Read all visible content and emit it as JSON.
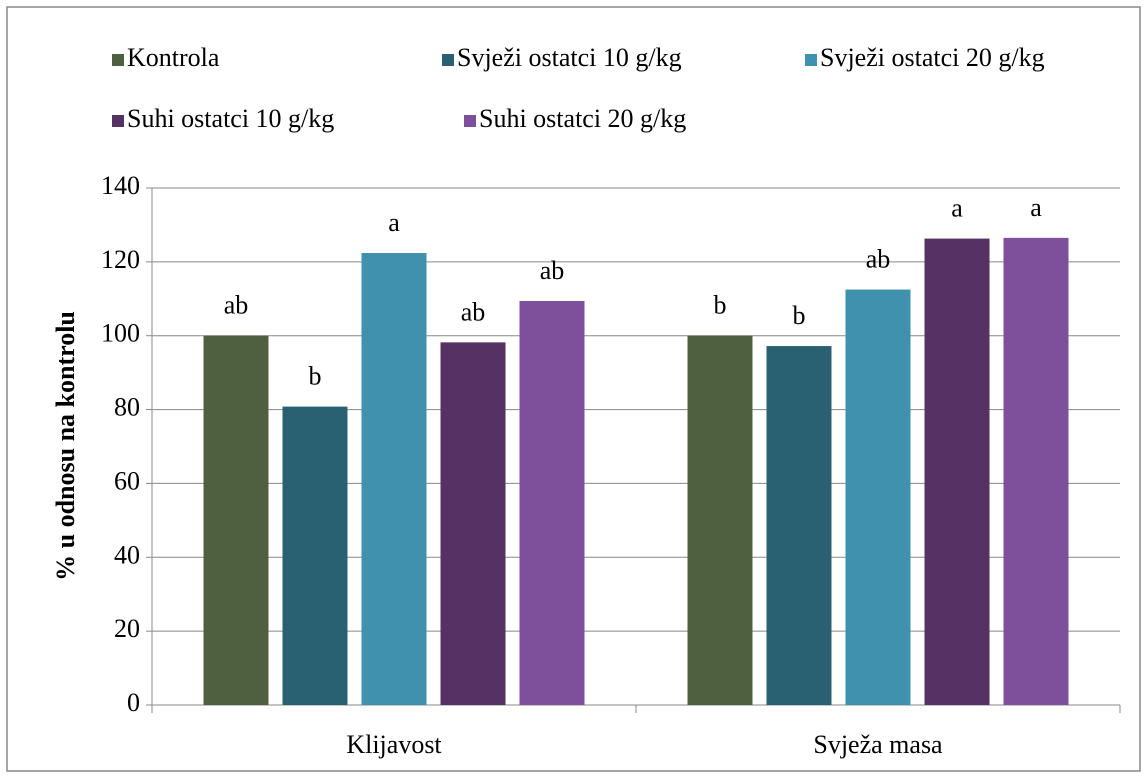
{
  "chart_data": {
    "type": "bar",
    "ylabel": "% u odnosu na kontrolu",
    "categories": [
      "Klijavost",
      "Svježa masa"
    ],
    "series": [
      {
        "name": "Kontrola",
        "color": "#4f6040",
        "values": [
          100,
          100
        ],
        "labels": [
          "ab",
          "b"
        ]
      },
      {
        "name": "Svježi ostatci 10 g/kg",
        "color": "#2a6172",
        "values": [
          80.8,
          97.2
        ],
        "labels": [
          "b",
          "b"
        ]
      },
      {
        "name": "Svježi ostatci 20 g/kg",
        "color": "#3f91ad",
        "values": [
          122.4,
          112.5
        ],
        "labels": [
          "a",
          "ab"
        ]
      },
      {
        "name": "Suhi ostatci 10 g/kg",
        "color": "#553263",
        "values": [
          98.2,
          126.3
        ],
        "labels": [
          "ab",
          "a"
        ]
      },
      {
        "name": "Suhi ostatci 20 g/kg",
        "color": "#7e4f9a",
        "values": [
          109.4,
          126.5
        ],
        "labels": [
          "ab",
          "a"
        ]
      }
    ],
    "ylim": [
      0,
      140
    ],
    "yticks": [
      0,
      20,
      40,
      60,
      80,
      100,
      120,
      140
    ],
    "grid": true,
    "legend": "top"
  }
}
